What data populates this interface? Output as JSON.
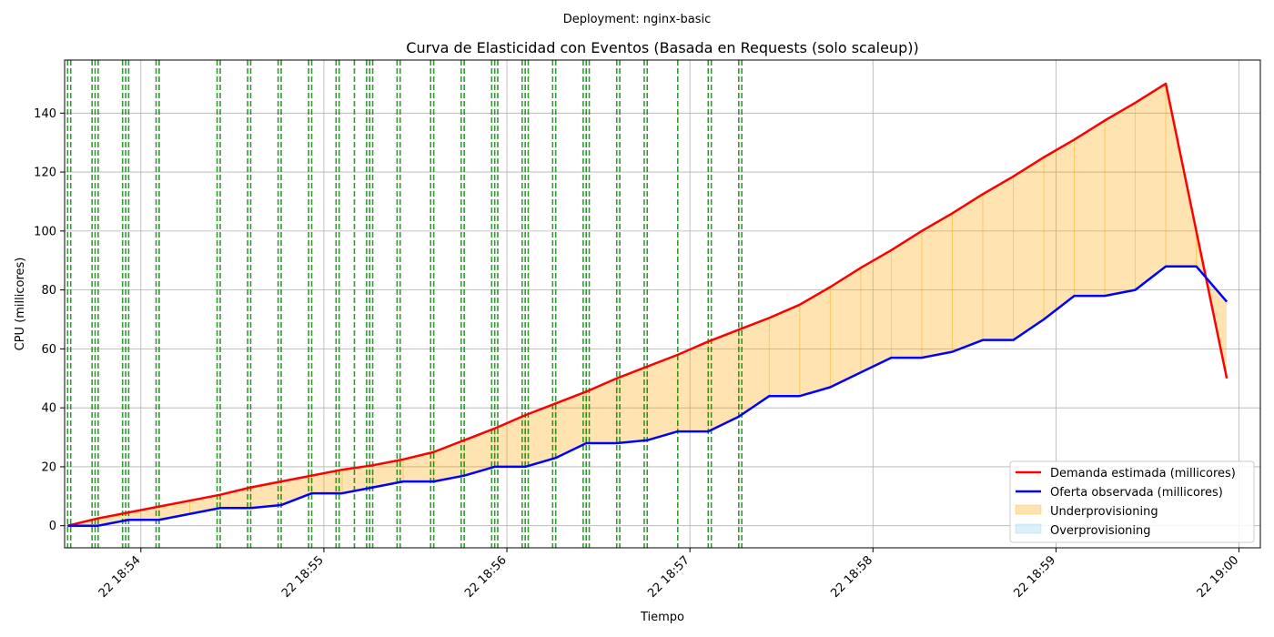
{
  "chart_data": {
    "type": "line",
    "suptitle": "Deployment: nginx-basic",
    "title": "Curva de Elasticidad con Eventos (Basada en Requests (solo scaleup))",
    "xlabel": "Tiempo",
    "ylabel": "CPU (millicores)",
    "x_ticks": [
      "22 18:54",
      "22 18:55",
      "22 18:56",
      "22 18:57",
      "22 18:58",
      "22 18:59",
      "22 19:00"
    ],
    "x_tick_times": [
      "18:54:00",
      "18:55:00",
      "18:56:00",
      "18:57:00",
      "18:58:00",
      "18:59:00",
      "19:00:00"
    ],
    "xlim": [
      "18:53:35",
      "19:00:07"
    ],
    "ylim": [
      -7.5,
      158
    ],
    "y_ticks": [
      0,
      20,
      40,
      60,
      80,
      100,
      120,
      140
    ],
    "grid": true,
    "legend_position": "bottom-right",
    "x": [
      "18:53:36",
      "18:53:46",
      "18:53:56",
      "18:54:06",
      "18:54:16",
      "18:54:26",
      "18:54:36",
      "18:54:46",
      "18:54:56",
      "18:55:06",
      "18:55:16",
      "18:55:26",
      "18:55:36",
      "18:55:46",
      "18:55:56",
      "18:56:06",
      "18:56:16",
      "18:56:26",
      "18:56:36",
      "18:56:46",
      "18:56:56",
      "18:57:06",
      "18:57:16",
      "18:57:26",
      "18:57:36",
      "18:57:46",
      "18:57:56",
      "18:58:06",
      "18:58:16",
      "18:58:26",
      "18:58:36",
      "18:58:46",
      "18:58:56",
      "18:59:06",
      "18:59:16",
      "18:59:26",
      "18:59:36",
      "18:59:46",
      "18:59:56"
    ],
    "series": [
      {
        "name": "Demanda estimada (millicores)",
        "color": "#ff0000",
        "values": [
          0,
          2.5,
          4.5,
          6.5,
          8.5,
          10.5,
          13,
          15,
          17,
          19,
          20.5,
          22.5,
          25,
          29,
          33,
          37.5,
          41.5,
          45.5,
          50,
          54,
          58,
          62.5,
          66.5,
          70.5,
          75,
          81,
          87.5,
          93.5,
          100,
          106,
          112.5,
          118.5,
          125,
          131,
          137.5,
          143.5,
          150,
          100,
          50
        ]
      },
      {
        "name": "Oferta observada (millicores)",
        "color": "#0000ff",
        "values": [
          0,
          0,
          2,
          2,
          4,
          6,
          6,
          7,
          11,
          11,
          13,
          15,
          15,
          17,
          20,
          20,
          23,
          28,
          28,
          29,
          32,
          32,
          37,
          44,
          44,
          47,
          52,
          57,
          57,
          59,
          63,
          63,
          70,
          78,
          78,
          80,
          88,
          88,
          76
        ]
      }
    ],
    "fill_legend": [
      {
        "name": "Underprovisioning",
        "color": "#ffa500",
        "opacity": 0.3
      },
      {
        "name": "Overprovisioning",
        "color": "#87ceeb",
        "opacity": 0.3
      }
    ],
    "event_lines_color": "#008000",
    "event_times": [
      "18:53:36",
      "18:53:37",
      "18:53:44",
      "18:53:45",
      "18:53:46",
      "18:53:54",
      "18:53:55",
      "18:53:56",
      "18:54:05",
      "18:54:06",
      "18:54:25",
      "18:54:26",
      "18:54:35",
      "18:54:36",
      "18:54:45",
      "18:54:46",
      "18:54:55",
      "18:54:56",
      "18:55:04",
      "18:55:05",
      "18:55:10",
      "18:55:14",
      "18:55:15",
      "18:55:16",
      "18:55:24",
      "18:55:25",
      "18:55:35",
      "18:55:36",
      "18:55:45",
      "18:55:46",
      "18:55:55",
      "18:55:56",
      "18:55:57",
      "18:56:05",
      "18:56:06",
      "18:56:07",
      "18:56:15",
      "18:56:16",
      "18:56:25",
      "18:56:26",
      "18:56:27",
      "18:56:36",
      "18:56:37",
      "18:56:45",
      "18:56:46",
      "18:56:56",
      "18:57:06",
      "18:57:07",
      "18:57:16",
      "18:57:17"
    ]
  }
}
